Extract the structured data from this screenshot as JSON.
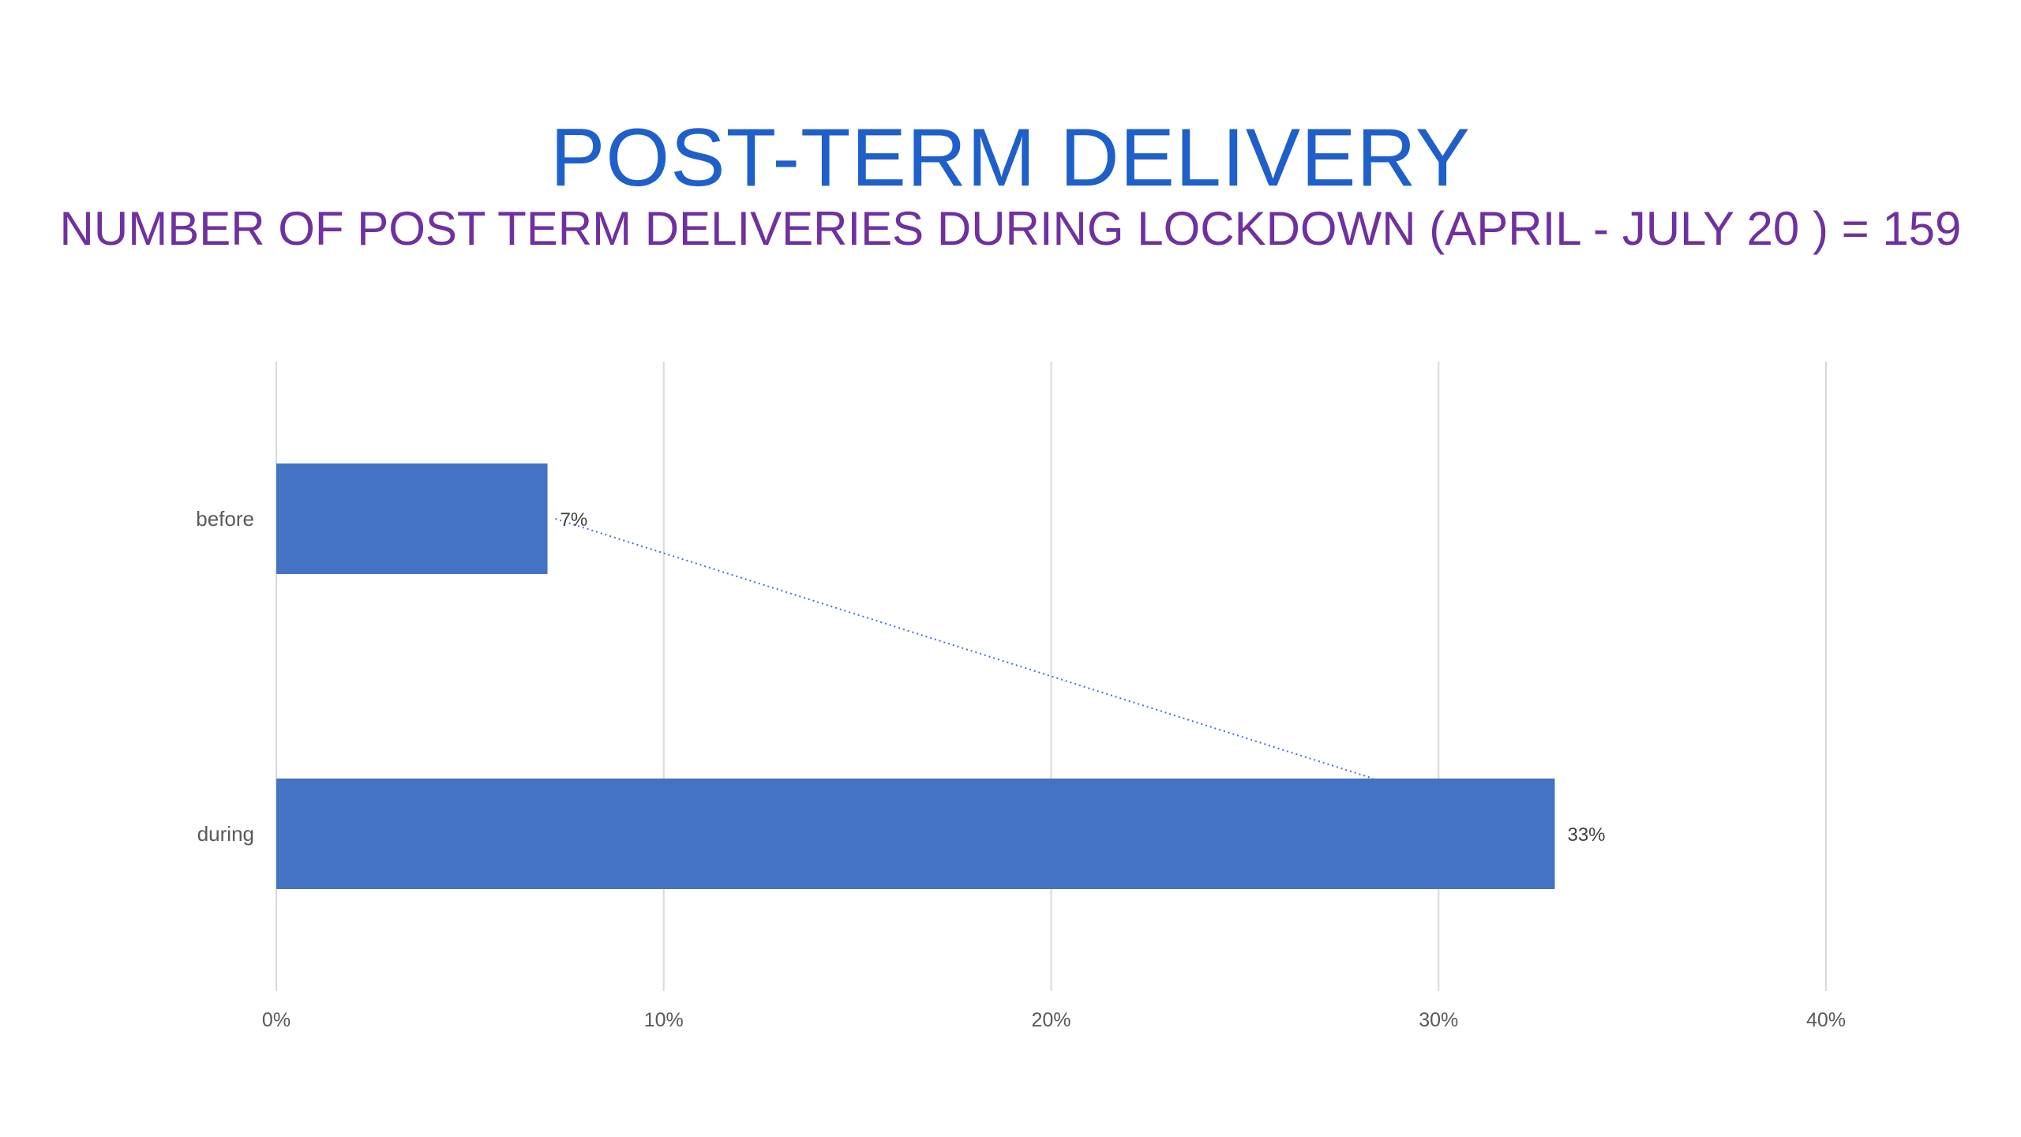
{
  "slide": {
    "title": "POST-TERM DELIVERY",
    "subtitle": "NUMBER OF  POST TERM DELIVERIES DURING LOCKDOWN (APRIL - JULY 20 ) = 159",
    "title_color": "#1F5FC9",
    "subtitle_color": "#7030A0"
  },
  "chart_data": {
    "type": "bar",
    "orientation": "horizontal",
    "categories": [
      "before",
      "during"
    ],
    "values": [
      7,
      33
    ],
    "data_labels": [
      "7%",
      "33%"
    ],
    "x_ticks": [
      "0%",
      "10%",
      "20%",
      "30%",
      "40%"
    ],
    "xlim": [
      0,
      40
    ],
    "x_unit": "%",
    "grid": "vertical",
    "legend": "none",
    "trendline": "dotted",
    "bar_color": "#4472C4",
    "grid_color": "#D9D9D9",
    "trendline_color": "#4472C4"
  }
}
